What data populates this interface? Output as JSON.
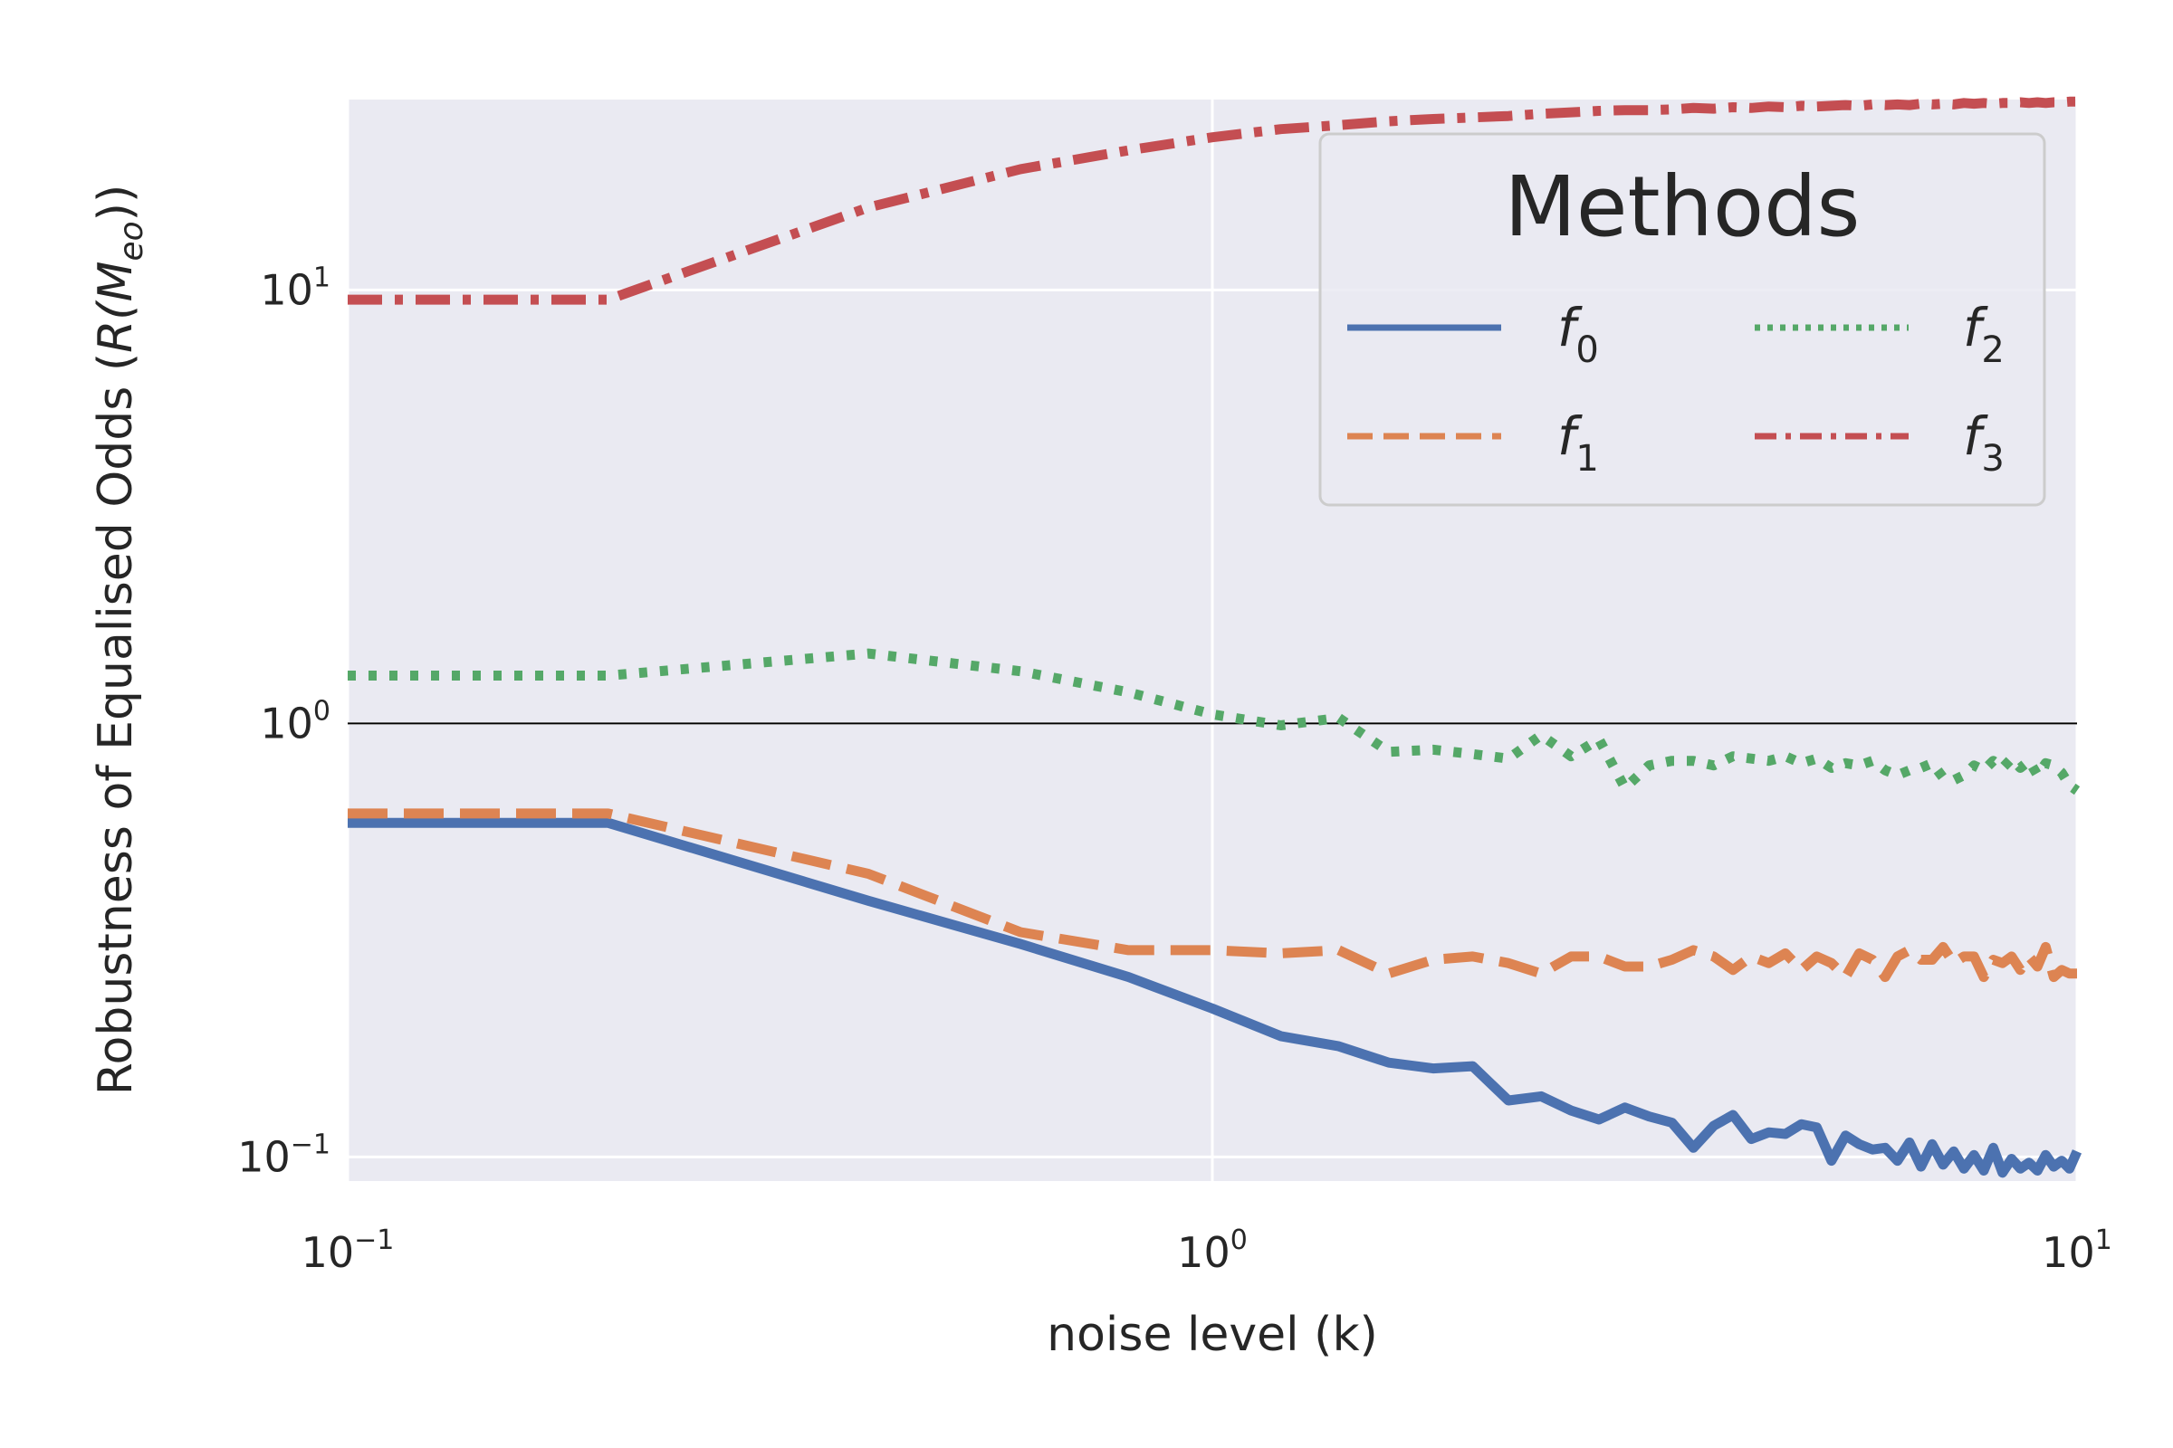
{
  "chart_data": {
    "type": "line",
    "xscale": "log",
    "yscale": "log",
    "xlim": [
      0.1,
      10
    ],
    "ylim": [
      0.088,
      27.5
    ],
    "xlabel": "noise level (k)",
    "ylabel_prefix": "Robustness of Equalised Odds (",
    "ylabel_math": "R(M",
    "ylabel_sub": "eo",
    "ylabel_suffix": "))",
    "x_ticks": [
      {
        "value": 0.1,
        "base": "10",
        "exp": "−1"
      },
      {
        "value": 1,
        "base": "10",
        "exp": "0"
      },
      {
        "value": 10,
        "base": "10",
        "exp": "1"
      }
    ],
    "y_ticks": [
      {
        "value": 0.1,
        "base": "10",
        "exp": "−1"
      },
      {
        "value": 1,
        "base": "10",
        "exp": "0"
      },
      {
        "value": 10,
        "base": "10",
        "exp": "1"
      }
    ],
    "reference_line": 1.0,
    "legend": {
      "title": "Methods",
      "position": "upper right",
      "ncol": 2
    },
    "series": [
      {
        "name": "f",
        "sub": "0",
        "color": "#4c72b0",
        "dash": "solid",
        "x": [
          0.1,
          0.2,
          0.4,
          0.6,
          0.8,
          1.0,
          1.2,
          1.4,
          1.6,
          1.8,
          2.0,
          2.2,
          2.4,
          2.6,
          2.8,
          3.0,
          3.2,
          3.4,
          3.6,
          3.8,
          4.0,
          4.2,
          4.4,
          4.6,
          4.8,
          5.0,
          5.2,
          5.4,
          5.6,
          5.8,
          6.0,
          6.2,
          6.4,
          6.6,
          6.8,
          7.0,
          7.2,
          7.4,
          7.6,
          7.8,
          8.0,
          8.2,
          8.4,
          8.6,
          8.8,
          9.0,
          9.2,
          9.4,
          9.6,
          9.8,
          10.0
        ],
        "y": [
          0.59,
          0.59,
          0.39,
          0.31,
          0.26,
          0.22,
          0.19,
          0.18,
          0.165,
          0.16,
          0.162,
          0.135,
          0.138,
          0.128,
          0.122,
          0.13,
          0.124,
          0.12,
          0.105,
          0.118,
          0.125,
          0.11,
          0.114,
          0.113,
          0.119,
          0.117,
          0.098,
          0.112,
          0.107,
          0.104,
          0.105,
          0.098,
          0.108,
          0.095,
          0.107,
          0.096,
          0.103,
          0.094,
          0.101,
          0.093,
          0.105,
          0.092,
          0.099,
          0.094,
          0.097,
          0.093,
          0.101,
          0.095,
          0.098,
          0.094,
          0.103
        ]
      },
      {
        "name": "f",
        "sub": "1",
        "color": "#dd8452",
        "dash": "dashed",
        "x": [
          0.1,
          0.2,
          0.4,
          0.6,
          0.8,
          1.0,
          1.2,
          1.4,
          1.6,
          1.8,
          2.0,
          2.2,
          2.4,
          2.6,
          2.8,
          3.0,
          3.2,
          3.4,
          3.6,
          3.8,
          4.0,
          4.2,
          4.4,
          4.6,
          4.8,
          5.0,
          5.2,
          5.4,
          5.6,
          5.8,
          6.0,
          6.2,
          6.4,
          6.6,
          6.8,
          7.0,
          7.2,
          7.4,
          7.6,
          7.8,
          8.0,
          8.2,
          8.4,
          8.6,
          8.8,
          9.0,
          9.2,
          9.4,
          9.6,
          9.8,
          10.0
        ],
        "y": [
          0.62,
          0.62,
          0.45,
          0.33,
          0.3,
          0.3,
          0.295,
          0.3,
          0.265,
          0.285,
          0.29,
          0.28,
          0.265,
          0.29,
          0.29,
          0.275,
          0.275,
          0.285,
          0.3,
          0.29,
          0.27,
          0.29,
          0.28,
          0.295,
          0.27,
          0.29,
          0.28,
          0.26,
          0.295,
          0.285,
          0.26,
          0.29,
          0.3,
          0.285,
          0.285,
          0.305,
          0.28,
          0.29,
          0.29,
          0.26,
          0.285,
          0.28,
          0.29,
          0.27,
          0.29,
          0.275,
          0.305,
          0.26,
          0.27,
          0.265,
          0.265
        ]
      },
      {
        "name": "f",
        "sub": "2",
        "color": "#55a868",
        "dash": "dotted",
        "x": [
          0.1,
          0.2,
          0.4,
          0.6,
          0.8,
          1.0,
          1.2,
          1.4,
          1.6,
          1.8,
          2.0,
          2.2,
          2.4,
          2.6,
          2.8,
          3.0,
          3.2,
          3.4,
          3.6,
          3.8,
          4.0,
          4.2,
          4.4,
          4.6,
          4.8,
          5.0,
          5.2,
          5.4,
          5.6,
          5.8,
          6.0,
          6.2,
          6.4,
          6.6,
          6.8,
          7.0,
          7.2,
          7.4,
          7.6,
          7.8,
          8.0,
          8.2,
          8.4,
          8.6,
          8.8,
          9.0,
          9.2,
          9.4,
          9.6,
          9.8,
          10.0
        ],
        "y": [
          1.29,
          1.29,
          1.45,
          1.32,
          1.18,
          1.05,
          0.99,
          1.03,
          0.86,
          0.87,
          0.85,
          0.83,
          0.94,
          0.84,
          0.92,
          0.71,
          0.8,
          0.82,
          0.82,
          0.8,
          0.84,
          0.83,
          0.82,
          0.84,
          0.81,
          0.83,
          0.79,
          0.81,
          0.8,
          0.82,
          0.78,
          0.76,
          0.78,
          0.79,
          0.81,
          0.75,
          0.74,
          0.76,
          0.8,
          0.78,
          0.82,
          0.79,
          0.83,
          0.79,
          0.82,
          0.76,
          0.81,
          0.8,
          0.77,
          0.72,
          0.7
        ]
      },
      {
        "name": "f",
        "sub": "3",
        "color": "#c44e52",
        "dash": "dashdot",
        "x": [
          0.1,
          0.2,
          0.4,
          0.6,
          0.8,
          1.0,
          1.2,
          1.4,
          1.6,
          1.8,
          2.0,
          2.2,
          2.4,
          2.6,
          2.8,
          3.0,
          3.2,
          3.4,
          3.6,
          3.8,
          4.0,
          4.2,
          4.4,
          4.6,
          4.8,
          5.0,
          5.2,
          5.4,
          5.6,
          5.8,
          6.0,
          6.2,
          6.4,
          6.6,
          6.8,
          7.0,
          7.2,
          7.4,
          7.6,
          7.8,
          8.0,
          8.2,
          8.4,
          8.6,
          8.8,
          9.0,
          9.2,
          9.4,
          9.6,
          9.8,
          10.0
        ],
        "y": [
          9.5,
          9.5,
          15.5,
          19.0,
          21.0,
          22.5,
          23.5,
          24.0,
          24.5,
          24.8,
          25.0,
          25.2,
          25.5,
          25.7,
          25.9,
          26.0,
          26.0,
          26.1,
          26.3,
          26.2,
          26.4,
          26.3,
          26.5,
          26.4,
          26.6,
          26.5,
          26.6,
          26.7,
          26.6,
          26.8,
          26.7,
          26.8,
          26.7,
          26.9,
          26.8,
          26.9,
          26.8,
          27.0,
          26.9,
          27.0,
          26.9,
          27.0,
          27.0,
          27.1,
          27.0,
          27.1,
          27.0,
          27.1,
          27.1,
          27.2,
          27.2
        ]
      }
    ]
  }
}
